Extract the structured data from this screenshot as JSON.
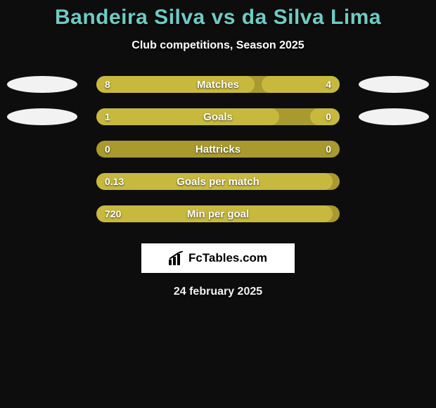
{
  "title_color": "#6fcbc4",
  "title": "Bandeira Silva vs da Silva Lima",
  "subtitle": "Club competitions, Season 2025",
  "bar_bg_color": "#a89a2e",
  "bar_fill_color": "#c7b93e",
  "badge_color": "#f2f2f2",
  "rows": [
    {
      "label": "Matches",
      "left_val": "8",
      "right_val": "4",
      "left_pct": 65,
      "right_pct": 32,
      "show_left_badge": true,
      "show_right_badge": true,
      "show_right_val": true
    },
    {
      "label": "Goals",
      "left_val": "1",
      "right_val": "0",
      "left_pct": 75,
      "right_pct": 12,
      "show_left_badge": true,
      "show_right_badge": true,
      "show_right_val": true
    },
    {
      "label": "Hattricks",
      "left_val": "0",
      "right_val": "0",
      "left_pct": 0,
      "right_pct": 0,
      "show_left_badge": false,
      "show_right_badge": false,
      "show_right_val": true
    },
    {
      "label": "Goals per match",
      "left_val": "0.13",
      "right_val": "",
      "left_pct": 97,
      "right_pct": 0,
      "show_left_badge": false,
      "show_right_badge": false,
      "show_right_val": false
    },
    {
      "label": "Min per goal",
      "left_val": "720",
      "right_val": "",
      "left_pct": 97,
      "right_pct": 0,
      "show_left_badge": false,
      "show_right_badge": false,
      "show_right_val": false
    }
  ],
  "brand_text": "FcTables.com",
  "date_text": "24 february 2025"
}
